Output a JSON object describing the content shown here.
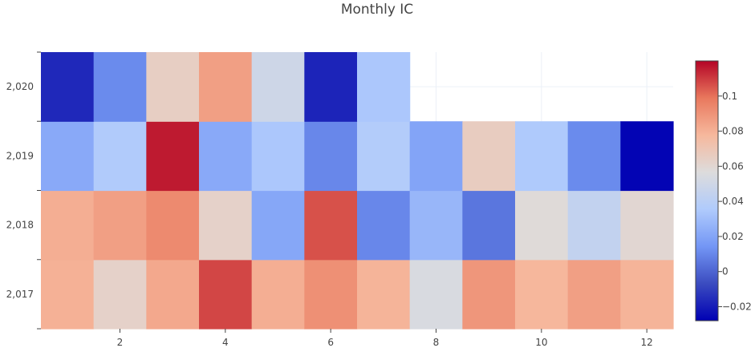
{
  "chart_data": {
    "type": "heatmap",
    "title": "Monthly IC",
    "xlabel": "",
    "ylabel": "",
    "x": [
      1,
      2,
      3,
      4,
      5,
      6,
      7,
      8,
      9,
      10,
      11,
      12
    ],
    "y": [
      2017,
      2018,
      2019,
      2020
    ],
    "x_tick_labels": [
      "2",
      "4",
      "6",
      "8",
      "10",
      "12"
    ],
    "x_tick_values": [
      2,
      4,
      6,
      8,
      10,
      12
    ],
    "y_tick_labels": [
      "2,017",
      "2,018",
      "2,019",
      "2,020"
    ],
    "z": [
      [
        0.08,
        0.063,
        0.083,
        0.108,
        0.081,
        0.091,
        0.079,
        0.054,
        0.089,
        0.078,
        0.086,
        0.079
      ],
      [
        0.081,
        0.086,
        0.093,
        0.063,
        0.021,
        0.106,
        0.01,
        0.027,
        0.005,
        0.058,
        0.044,
        0.06
      ],
      [
        0.022,
        0.036,
        0.116,
        0.022,
        0.034,
        0.01,
        0.037,
        0.02,
        0.066,
        0.035,
        0.011,
        -0.027
      ],
      [
        -0.017,
        0.011,
        0.065,
        0.086,
        0.049,
        -0.018,
        0.034,
        null,
        null,
        null,
        null,
        null
      ]
    ],
    "zlim": [
      -0.028,
      0.12
    ],
    "colorbar_ticks": [
      -0.02,
      0,
      0.02,
      0.04,
      0.06,
      0.08,
      0.1
    ],
    "colorbar_tick_labels": [
      "−0.02",
      "0",
      "0.02",
      "0.04",
      "0.06",
      "0.08",
      "0.1"
    ],
    "colorscale": [
      "#0000b3",
      "#3b4cc0",
      "#7396f5",
      "#b0cbfc",
      "#dddcdc",
      "#f6b89d",
      "#e9785d",
      "#b40426"
    ],
    "grid": true,
    "legend": "colorbar-right"
  }
}
